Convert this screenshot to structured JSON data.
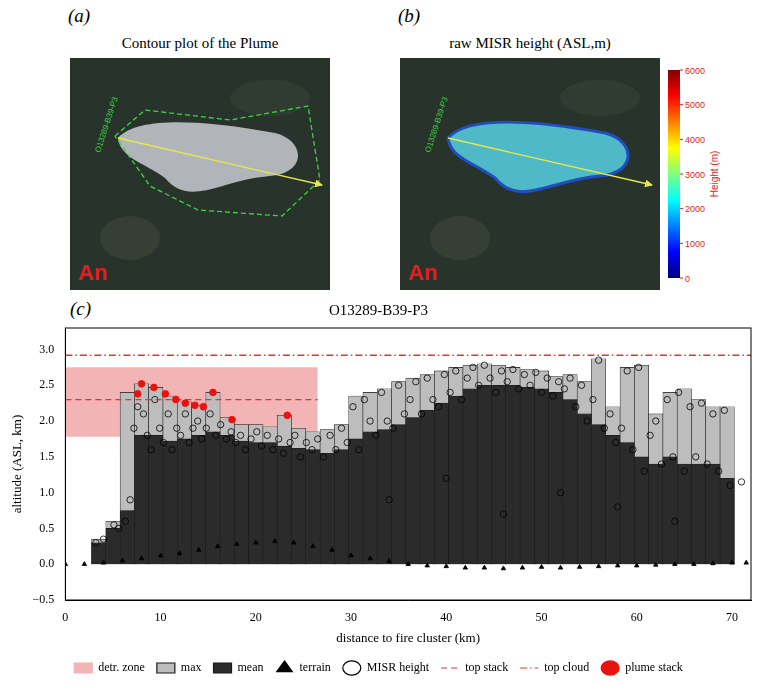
{
  "figure_panels": [
    {
      "letter": "(a)",
      "title": "Contour plot of the Plume",
      "image_label": "An",
      "plume_label": "O13289-B39-P3"
    },
    {
      "letter": "(b)",
      "title": "raw MISR height (ASL,m)",
      "image_label": "An",
      "plume_label": "O13289-B39-P3",
      "colorbar": {
        "label": "Height (m)",
        "range": [
          0,
          6000
        ],
        "ticks": [
          0,
          1000,
          2000,
          3000,
          4000,
          5000,
          6000
        ]
      }
    }
  ],
  "panel_letter": "(c)",
  "chart_data": {
    "type": "bar",
    "title": "O13289-B39-P3",
    "x_label": "distance to fire cluster (km)",
    "y_label": "altitude (ASL, km)",
    "xlim": [
      0,
      72
    ],
    "xticks": [
      0,
      10,
      20,
      30,
      40,
      50,
      60,
      70
    ],
    "ylim": [
      -0.5,
      3.3
    ],
    "yticks": [
      {
        "value": -0.5,
        "label": "−0.5"
      },
      {
        "value": 0,
        "label": "0.0"
      },
      {
        "value": 0.5,
        "label": "0.5"
      },
      {
        "value": 1,
        "label": "1.0"
      },
      {
        "value": 1.5,
        "label": "1.5"
      },
      {
        "value": 2,
        "label": "2.0"
      },
      {
        "value": 2.5,
        "label": "2.5"
      },
      {
        "value": 3,
        "label": "3.0"
      }
    ],
    "grid": false,
    "legend": "bottom",
    "series": [
      {
        "name": "detr. zone",
        "type": "area",
        "color": "#f2b4b4",
        "x": [
          0,
          26.5
        ],
        "y_low": 1.78,
        "y_high": 2.75
      },
      {
        "name": "max",
        "type": "bar",
        "color": "#bdbdbd",
        "x": [
          3.5,
          5,
          6.5,
          8,
          9.5,
          11,
          12.5,
          14,
          15.5,
          17,
          18.5,
          20,
          21.5,
          23,
          24.5,
          26,
          27.5,
          29,
          30.5,
          32,
          33.5,
          35,
          36.5,
          38,
          39.5,
          41,
          42.5,
          44,
          45.5,
          47,
          48.5,
          50,
          51.5,
          53,
          54.5,
          56,
          57.5,
          59,
          60.5,
          62,
          63.5,
          65,
          66.5,
          68,
          69.5
        ],
        "values": [
          0.35,
          0.6,
          2.4,
          2.52,
          2.47,
          2.35,
          2.27,
          2.22,
          2.4,
          2.05,
          1.95,
          1.95,
          1.92,
          2.08,
          1.9,
          1.85,
          1.88,
          1.95,
          2.35,
          2.4,
          2.45,
          2.55,
          2.6,
          2.65,
          2.7,
          2.75,
          2.78,
          2.8,
          2.78,
          2.75,
          2.72,
          2.7,
          2.62,
          2.65,
          2.55,
          2.87,
          2.2,
          2.75,
          2.78,
          2.1,
          2.4,
          2.45,
          2.3,
          2.2,
          2.2
        ]
      },
      {
        "name": "mean",
        "type": "bar",
        "color": "#2b2b2b",
        "x": [
          3.5,
          5,
          6.5,
          8,
          9.5,
          11,
          12.5,
          14,
          15.5,
          17,
          18.5,
          20,
          21.5,
          23,
          24.5,
          26,
          27.5,
          29,
          30.5,
          32,
          33.5,
          35,
          36.5,
          38,
          39.5,
          41,
          42.5,
          44,
          45.5,
          47,
          48.5,
          50,
          51.5,
          53,
          54.5,
          56,
          57.5,
          59,
          60.5,
          62,
          63.5,
          65,
          66.5,
          68,
          69.5
        ],
        "values": [
          0.3,
          0.5,
          0.75,
          1.8,
          1.8,
          1.72,
          1.75,
          1.8,
          1.85,
          1.8,
          1.72,
          1.7,
          1.7,
          1.65,
          1.62,
          1.6,
          1.55,
          1.6,
          1.75,
          1.85,
          1.88,
          1.95,
          2.05,
          2.15,
          2.25,
          2.35,
          2.45,
          2.5,
          2.5,
          2.5,
          2.47,
          2.45,
          2.4,
          2.3,
          2.1,
          1.95,
          1.8,
          1.7,
          1.5,
          1.4,
          1.5,
          1.4,
          1.4,
          1.4,
          1.2
        ]
      },
      {
        "name": "terrain",
        "type": "scatter",
        "marker": "triangle",
        "color": "#000000",
        "x": [
          0,
          2,
          4,
          6,
          8,
          10,
          12,
          14,
          16,
          18,
          20,
          22,
          24,
          26,
          28,
          30,
          32,
          34,
          36,
          38,
          40,
          42,
          44,
          46,
          48,
          50,
          52,
          54,
          56,
          58,
          60,
          62,
          64,
          66,
          68,
          70,
          71.5
        ],
        "values": [
          0,
          0,
          0.02,
          0.05,
          0.08,
          0.12,
          0.15,
          0.2,
          0.25,
          0.28,
          0.3,
          0.32,
          0.3,
          0.25,
          0.2,
          0.12,
          0.08,
          0.04,
          0,
          -0.02,
          -0.03,
          -0.05,
          -0.05,
          -0.06,
          -0.05,
          -0.04,
          -0.05,
          -0.04,
          -0.03,
          -0.02,
          -0.02,
          -0.01,
          0,
          0,
          0.01,
          0.02,
          0.02
        ]
      },
      {
        "name": "MISR height",
        "type": "scatter",
        "marker": "circle_open",
        "color": "#000000",
        "x": [
          3.2,
          4.0,
          5.1,
          5.6,
          6.3,
          6.8,
          7.2,
          7.6,
          8.2,
          8.6,
          9.0,
          9.4,
          9.9,
          10.3,
          10.8,
          11.2,
          11.7,
          12.1,
          12.6,
          13.0,
          13.4,
          13.9,
          14.3,
          14.8,
          15.2,
          15.8,
          16.3,
          16.9,
          17.4,
          17.9,
          18.4,
          18.9,
          19.5,
          20.1,
          20.6,
          21.2,
          21.8,
          22.4,
          22.9,
          23.6,
          24.1,
          24.7,
          25.3,
          25.9,
          26.5,
          27.1,
          27.8,
          28.4,
          29.0,
          29.6,
          30.2,
          30.8,
          31.4,
          32.0,
          32.6,
          33.2,
          33.8,
          34.0,
          34.4,
          35.0,
          35.6,
          36.2,
          36.8,
          37.4,
          38.0,
          38.6,
          39.2,
          39.8,
          40.0,
          40.4,
          41.0,
          41.6,
          42.2,
          42.8,
          43.4,
          44.0,
          44.6,
          45.2,
          45.8,
          46.0,
          46.4,
          47.0,
          47.6,
          48.2,
          48.8,
          49.4,
          50.0,
          50.6,
          51.2,
          51.8,
          52.0,
          52.4,
          53.0,
          53.6,
          54.2,
          54.8,
          55.4,
          56.0,
          56.6,
          57.2,
          57.8,
          58.0,
          58.4,
          59.0,
          59.6,
          60.2,
          60.8,
          61.4,
          62.0,
          62.6,
          63.2,
          63.8,
          64.0,
          64.4,
          65.0,
          65.6,
          66.2,
          66.8,
          67.4,
          68.0,
          68.6,
          69.2,
          69.8,
          71.0
        ],
        "values": [
          0.3,
          0.35,
          0.55,
          0.5,
          0.6,
          0.9,
          1.9,
          2.2,
          2.1,
          1.8,
          1.6,
          2.3,
          1.9,
          1.7,
          2.1,
          1.6,
          1.9,
          1.8,
          2.1,
          1.7,
          1.9,
          2.0,
          1.75,
          1.9,
          2.1,
          1.8,
          1.95,
          1.75,
          1.85,
          1.7,
          1.8,
          1.6,
          1.75,
          1.85,
          1.65,
          1.8,
          1.6,
          1.75,
          1.55,
          1.7,
          1.8,
          1.5,
          1.7,
          1.6,
          1.75,
          1.5,
          1.8,
          1.6,
          1.9,
          1.7,
          2.2,
          1.6,
          2.3,
          2.0,
          1.8,
          2.4,
          2.0,
          0.9,
          1.9,
          2.5,
          2.1,
          2.3,
          2.55,
          2.1,
          2.6,
          2.3,
          2.2,
          2.65,
          1.2,
          2.4,
          2.7,
          2.3,
          2.6,
          2.75,
          2.5,
          2.78,
          2.6,
          2.4,
          2.7,
          0.7,
          2.55,
          2.72,
          2.45,
          2.65,
          2.5,
          2.68,
          2.4,
          2.6,
          2.35,
          2.55,
          1.0,
          2.45,
          2.6,
          2.2,
          2.5,
          2.0,
          2.3,
          2.85,
          1.9,
          2.1,
          1.7,
          0.8,
          1.9,
          2.7,
          1.6,
          2.75,
          1.3,
          1.8,
          2.0,
          1.4,
          2.3,
          1.5,
          0.6,
          2.4,
          1.3,
          2.2,
          1.5,
          2.25,
          1.4,
          2.1,
          1.3,
          2.15,
          1.1,
          1.15
        ]
      },
      {
        "name": "top stack",
        "type": "line",
        "line_style": "dashed",
        "color": "#e8322f",
        "x": [
          0,
          26.5
        ],
        "values": [
          2.3,
          2.3
        ]
      },
      {
        "name": "top cloud",
        "type": "line",
        "line_style": "dashdot",
        "color": "#e8322f",
        "x": [
          0,
          72
        ],
        "values": [
          2.92,
          2.92
        ]
      },
      {
        "name": "plume stack",
        "type": "scatter",
        "marker": "circle",
        "color": "#e8120f",
        "x": [
          7.6,
          8.0,
          9.3,
          10.5,
          11.6,
          12.6,
          13.6,
          14.5,
          15.5,
          17.5,
          23.3
        ],
        "values": [
          2.38,
          2.52,
          2.47,
          2.38,
          2.3,
          2.25,
          2.22,
          2.2,
          2.4,
          2.02,
          2.08
        ]
      }
    ]
  }
}
